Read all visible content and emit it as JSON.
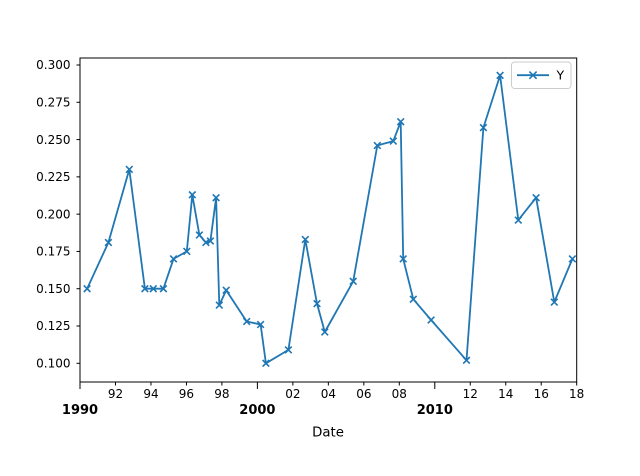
{
  "figure": {
    "background": "#ffffff",
    "plot_bg": "#ffffff",
    "spine_color": "#000000",
    "tick_color": "#000000"
  },
  "chart_data": {
    "type": "line",
    "title": "",
    "xlabel": "Date",
    "ylabel": "",
    "grid": false,
    "xlim": [
      1990,
      2018
    ],
    "ylim": [
      0.0875,
      0.3047
    ],
    "series": [
      {
        "name": "Y",
        "color": "#1f77b4",
        "marker": "x",
        "x": [
          1990.4,
          1991.6,
          1992.78,
          1993.66,
          1994.13,
          1994.7,
          1995.27,
          1996.02,
          1996.33,
          1996.73,
          1997.1,
          1997.35,
          1997.67,
          1997.85,
          1998.24,
          1999.4,
          2000.18,
          2000.48,
          2001.75,
          2002.7,
          2003.36,
          2003.8,
          2005.4,
          2006.76,
          2007.66,
          2008.08,
          2008.22,
          2008.79,
          2009.79,
          2011.79,
          2012.74,
          2013.68,
          2014.71,
          2015.71,
          2016.74,
          2017.76
        ],
        "y": [
          0.15,
          0.181,
          0.23,
          0.15,
          0.15,
          0.15,
          0.17,
          0.175,
          0.213,
          0.186,
          0.181,
          0.182,
          0.211,
          0.139,
          0.149,
          0.128,
          0.126,
          0.1,
          0.109,
          0.183,
          0.14,
          0.121,
          0.155,
          0.246,
          0.249,
          0.262,
          0.17,
          0.143,
          0.129,
          0.102,
          0.258,
          0.293,
          0.196,
          0.211,
          0.141,
          0.17
        ]
      }
    ],
    "y_ticks": [
      {
        "value": 0.1,
        "label": "0.100"
      },
      {
        "value": 0.125,
        "label": "0.125"
      },
      {
        "value": 0.15,
        "label": "0.150"
      },
      {
        "value": 0.175,
        "label": "0.175"
      },
      {
        "value": 0.2,
        "label": "0.200"
      },
      {
        "value": 0.225,
        "label": "0.225"
      },
      {
        "value": 0.25,
        "label": "0.250"
      },
      {
        "value": 0.275,
        "label": "0.275"
      },
      {
        "value": 0.3,
        "label": "0.300"
      }
    ],
    "x_minor_ticks": [
      {
        "year": 1992,
        "label": "92"
      },
      {
        "year": 1994,
        "label": "94"
      },
      {
        "year": 1996,
        "label": "96"
      },
      {
        "year": 1998,
        "label": "98"
      },
      {
        "year": 2002,
        "label": "02"
      },
      {
        "year": 2004,
        "label": "04"
      },
      {
        "year": 2006,
        "label": "06"
      },
      {
        "year": 2008,
        "label": "08"
      },
      {
        "year": 2012,
        "label": "12"
      },
      {
        "year": 2014,
        "label": "14"
      },
      {
        "year": 2016,
        "label": "16"
      },
      {
        "year": 2018,
        "label": "18"
      }
    ],
    "x_major_ticks": [
      {
        "year": 1990,
        "label": "1990"
      },
      {
        "year": 2000,
        "label": "2000"
      },
      {
        "year": 2010,
        "label": "2010"
      }
    ],
    "legend": {
      "position": "upper right",
      "border_color": "#cccccc",
      "background": "#ffffff",
      "entries": [
        {
          "label": "Y",
          "color": "#1f77b4",
          "marker": "x"
        }
      ]
    }
  }
}
